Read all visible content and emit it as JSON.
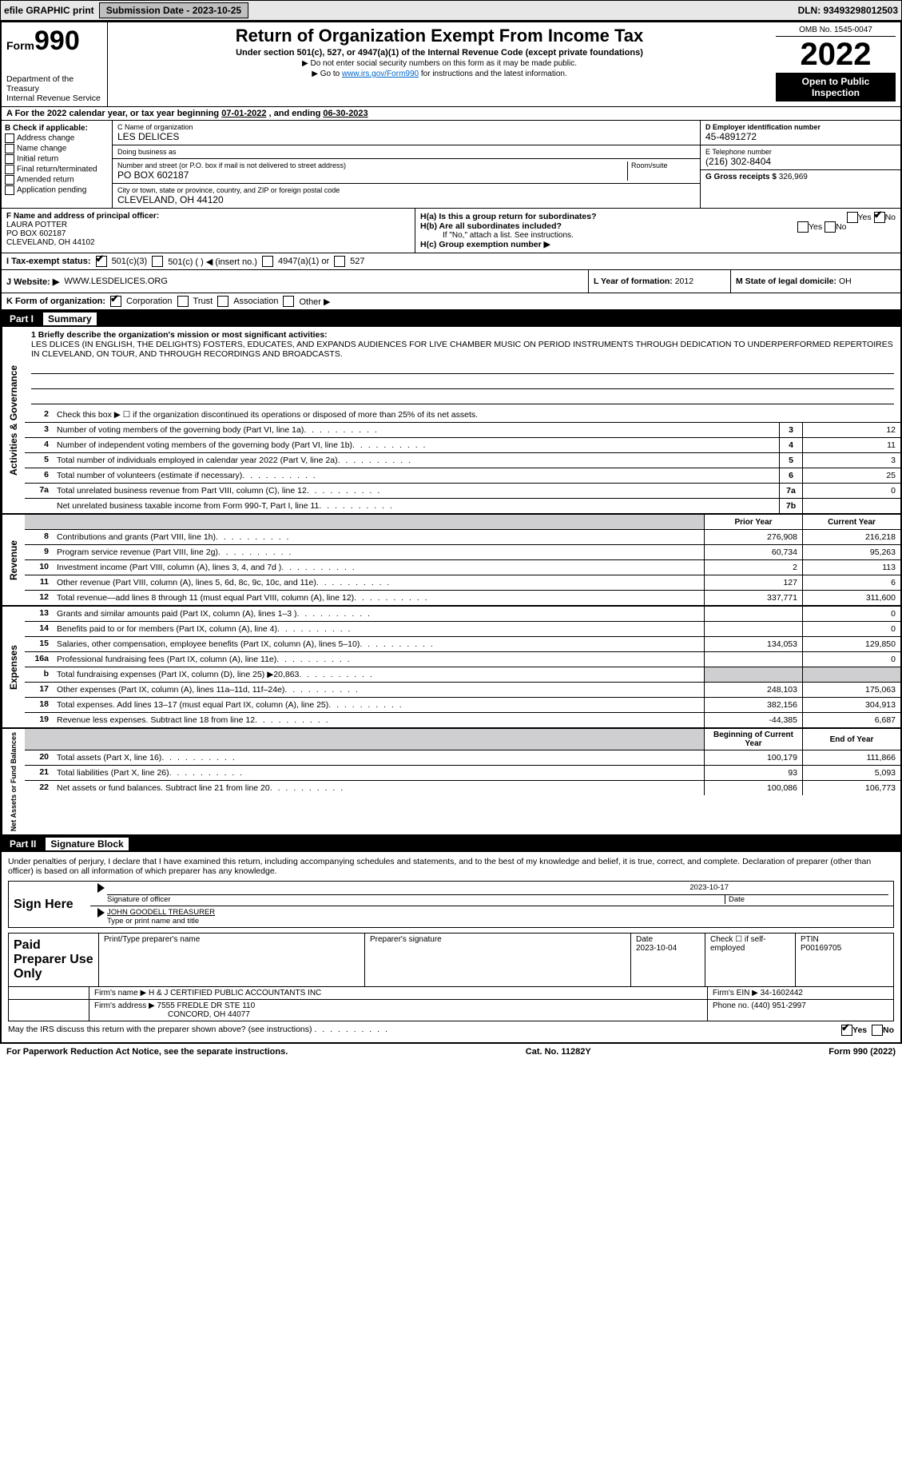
{
  "topbar": {
    "efile": "efile GRAPHIC print",
    "submission_btn": "Submission Date - 2023-10-25",
    "dln": "DLN: 93493298012503"
  },
  "header": {
    "form_prefix": "Form",
    "form_number": "990",
    "title": "Return of Organization Exempt From Income Tax",
    "subtitle": "Under section 501(c), 527, or 4947(a)(1) of the Internal Revenue Code (except private foundations)",
    "note1": "▶ Do not enter social security numbers on this form as it may be made public.",
    "note2_prefix": "▶ Go to ",
    "note2_link": "www.irs.gov/Form990",
    "note2_suffix": " for instructions and the latest information.",
    "dept": "Department of the Treasury",
    "irs": "Internal Revenue Service",
    "omb": "OMB No. 1545-0047",
    "year": "2022",
    "open_pub": "Open to Public Inspection"
  },
  "A": {
    "text_prefix": "A For the 2022 calendar year, or tax year beginning ",
    "begin": "07-01-2022",
    "mid": " , and ending ",
    "end": "06-30-2023"
  },
  "B": {
    "title": "B Check if applicable:",
    "items": [
      "Address change",
      "Name change",
      "Initial return",
      "Final return/terminated",
      "Amended return",
      "Application pending"
    ]
  },
  "C": {
    "name_label": "C Name of organization",
    "name": "LES DELICES",
    "dba_label": "Doing business as",
    "dba": "",
    "street_label": "Number and street (or P.O. box if mail is not delivered to street address)",
    "room_label": "Room/suite",
    "street": "PO BOX 602187",
    "city_label": "City or town, state or province, country, and ZIP or foreign postal code",
    "city": "CLEVELAND, OH  44120"
  },
  "D": {
    "label": "D Employer identification number",
    "value": "45-4891272"
  },
  "E": {
    "label": "E Telephone number",
    "value": "(216) 302-8404"
  },
  "G": {
    "label": "G Gross receipts $",
    "value": "326,969"
  },
  "F": {
    "label": "F  Name and address of principal officer:",
    "name": "LAURA POTTER",
    "street": "PO BOX 602187",
    "city": "CLEVELAND, OH  44102"
  },
  "H": {
    "a_label": "H(a)  Is this a group return for subordinates?",
    "a_yes": "Yes",
    "a_no": "No",
    "b_label": "H(b)  Are all subordinates included?",
    "b_note": "If \"No,\" attach a list. See instructions.",
    "c_label": "H(c)  Group exemption number ▶"
  },
  "I": {
    "label": "I  Tax-exempt status:",
    "opt1": "501(c)(3)",
    "opt2": "501(c) (   ) ◀ (insert no.)",
    "opt3": "4947(a)(1) or",
    "opt4": "527"
  },
  "J": {
    "label": "J  Website: ▶",
    "value": "WWW.LESDELICES.ORG"
  },
  "K": {
    "label": "K Form of organization:",
    "opts": [
      "Corporation",
      "Trust",
      "Association",
      "Other ▶"
    ]
  },
  "L": {
    "label": "L Year of formation:",
    "value": "2012"
  },
  "M": {
    "label": "M State of legal domicile:",
    "value": "OH"
  },
  "parts": {
    "p1_label": "Part I",
    "p1_title": "Summary",
    "p2_label": "Part II",
    "p2_title": "Signature Block"
  },
  "side_labels": {
    "ag": "Activities & Governance",
    "rev": "Revenue",
    "exp": "Expenses",
    "net": "Net Assets or Fund Balances"
  },
  "summary": {
    "l1_label": "1  Briefly describe the organization's mission or most significant activities:",
    "l1_text": "LES DLICES (IN ENGLISH, THE DELIGHTS) FOSTERS, EDUCATES, AND EXPANDS AUDIENCES FOR LIVE CHAMBER MUSIC ON PERIOD INSTRUMENTS THROUGH DEDICATION TO UNDERPERFORMED REPERTOIRES IN CLEVELAND, ON TOUR, AND THROUGH RECORDINGS AND BROADCASTS.",
    "l2": "Check this box ▶ ☐  if the organization discontinued its operations or disposed of more than 25% of its net assets.",
    "lines_single": [
      {
        "n": "3",
        "d": "Number of voting members of the governing body (Part VI, line 1a)",
        "c": "3",
        "v": "12"
      },
      {
        "n": "4",
        "d": "Number of independent voting members of the governing body (Part VI, line 1b)",
        "c": "4",
        "v": "11"
      },
      {
        "n": "5",
        "d": "Total number of individuals employed in calendar year 2022 (Part V, line 2a)",
        "c": "5",
        "v": "3"
      },
      {
        "n": "6",
        "d": "Total number of volunteers (estimate if necessary)",
        "c": "6",
        "v": "25"
      },
      {
        "n": "7a",
        "d": "Total unrelated business revenue from Part VIII, column (C), line 12",
        "c": "7a",
        "v": "0"
      },
      {
        "n": "",
        "d": "Net unrelated business taxable income from Form 990-T, Part I, line 11",
        "c": "7b",
        "v": ""
      }
    ],
    "col_hdr": {
      "prior": "Prior Year",
      "current": "Current Year",
      "boy": "Beginning of Current Year",
      "eoy": "End of Year"
    },
    "rev_lines": [
      {
        "n": "8",
        "d": "Contributions and grants (Part VIII, line 1h)",
        "p": "276,908",
        "c": "216,218"
      },
      {
        "n": "9",
        "d": "Program service revenue (Part VIII, line 2g)",
        "p": "60,734",
        "c": "95,263"
      },
      {
        "n": "10",
        "d": "Investment income (Part VIII, column (A), lines 3, 4, and 7d )",
        "p": "2",
        "c": "113"
      },
      {
        "n": "11",
        "d": "Other revenue (Part VIII, column (A), lines 5, 6d, 8c, 9c, 10c, and 11e)",
        "p": "127",
        "c": "6"
      },
      {
        "n": "12",
        "d": "Total revenue—add lines 8 through 11 (must equal Part VIII, column (A), line 12)",
        "p": "337,771",
        "c": "311,600"
      }
    ],
    "exp_lines": [
      {
        "n": "13",
        "d": "Grants and similar amounts paid (Part IX, column (A), lines 1–3 )",
        "p": "",
        "c": "0"
      },
      {
        "n": "14",
        "d": "Benefits paid to or for members (Part IX, column (A), line 4)",
        "p": "",
        "c": "0"
      },
      {
        "n": "15",
        "d": "Salaries, other compensation, employee benefits (Part IX, column (A), lines 5–10)",
        "p": "134,053",
        "c": "129,850"
      },
      {
        "n": "16a",
        "d": "Professional fundraising fees (Part IX, column (A), line 11e)",
        "p": "",
        "c": "0"
      },
      {
        "n": "b",
        "d": "Total fundraising expenses (Part IX, column (D), line 25) ▶20,863",
        "p": "grey",
        "c": "grey"
      },
      {
        "n": "17",
        "d": "Other expenses (Part IX, column (A), lines 11a–11d, 11f–24e)",
        "p": "248,103",
        "c": "175,063"
      },
      {
        "n": "18",
        "d": "Total expenses. Add lines 13–17 (must equal Part IX, column (A), line 25)",
        "p": "382,156",
        "c": "304,913"
      },
      {
        "n": "19",
        "d": "Revenue less expenses. Subtract line 18 from line 12",
        "p": "-44,385",
        "c": "6,687"
      }
    ],
    "net_lines": [
      {
        "n": "20",
        "d": "Total assets (Part X, line 16)",
        "p": "100,179",
        "c": "111,866"
      },
      {
        "n": "21",
        "d": "Total liabilities (Part X, line 26)",
        "p": "93",
        "c": "5,093"
      },
      {
        "n": "22",
        "d": "Net assets or fund balances. Subtract line 21 from line 20",
        "p": "100,086",
        "c": "106,773"
      }
    ]
  },
  "sig": {
    "penalties": "Under penalties of perjury, I declare that I have examined this return, including accompanying schedules and statements, and to the best of my knowledge and belief, it is true, correct, and complete. Declaration of preparer (other than officer) is based on all information of which preparer has any knowledge.",
    "sign_here": "Sign Here",
    "sig_officer": "Signature of officer",
    "date": "Date",
    "sig_date": "2023-10-17",
    "name_title": "JOHN GOODELL  TREASURER",
    "name_title_label": "Type or print name and title",
    "paid": "Paid Preparer Use Only",
    "prep_name_label": "Print/Type preparer's name",
    "prep_name": "",
    "prep_sig_label": "Preparer's signature",
    "prep_date_label": "Date",
    "prep_date": "2023-10-04",
    "self_emp": "Check ☐ if self-employed",
    "ptin_label": "PTIN",
    "ptin": "P00169705",
    "firm_name_label": "Firm's name    ▶",
    "firm_name": "H & J CERTIFIED PUBLIC ACCOUNTANTS INC",
    "firm_ein_label": "Firm's EIN ▶",
    "firm_ein": "34-1602442",
    "firm_addr_label": "Firm's address ▶",
    "firm_addr1": "7555 FREDLE DR STE 110",
    "firm_addr2": "CONCORD, OH  44077",
    "phone_label": "Phone no.",
    "phone": "(440) 951-2997",
    "discuss": "May the IRS discuss this return with the preparer shown above? (see instructions)",
    "yes": "Yes",
    "no": "No"
  },
  "footer": {
    "left": "For Paperwork Reduction Act Notice, see the separate instructions.",
    "mid": "Cat. No. 11282Y",
    "right": "Form 990 (2022)"
  },
  "colors": {
    "topbar_bg": "#e7e7e8",
    "btn_bg": "#bfbfc0",
    "link": "#0066cc",
    "grey_cell": "#cfcfd1"
  }
}
